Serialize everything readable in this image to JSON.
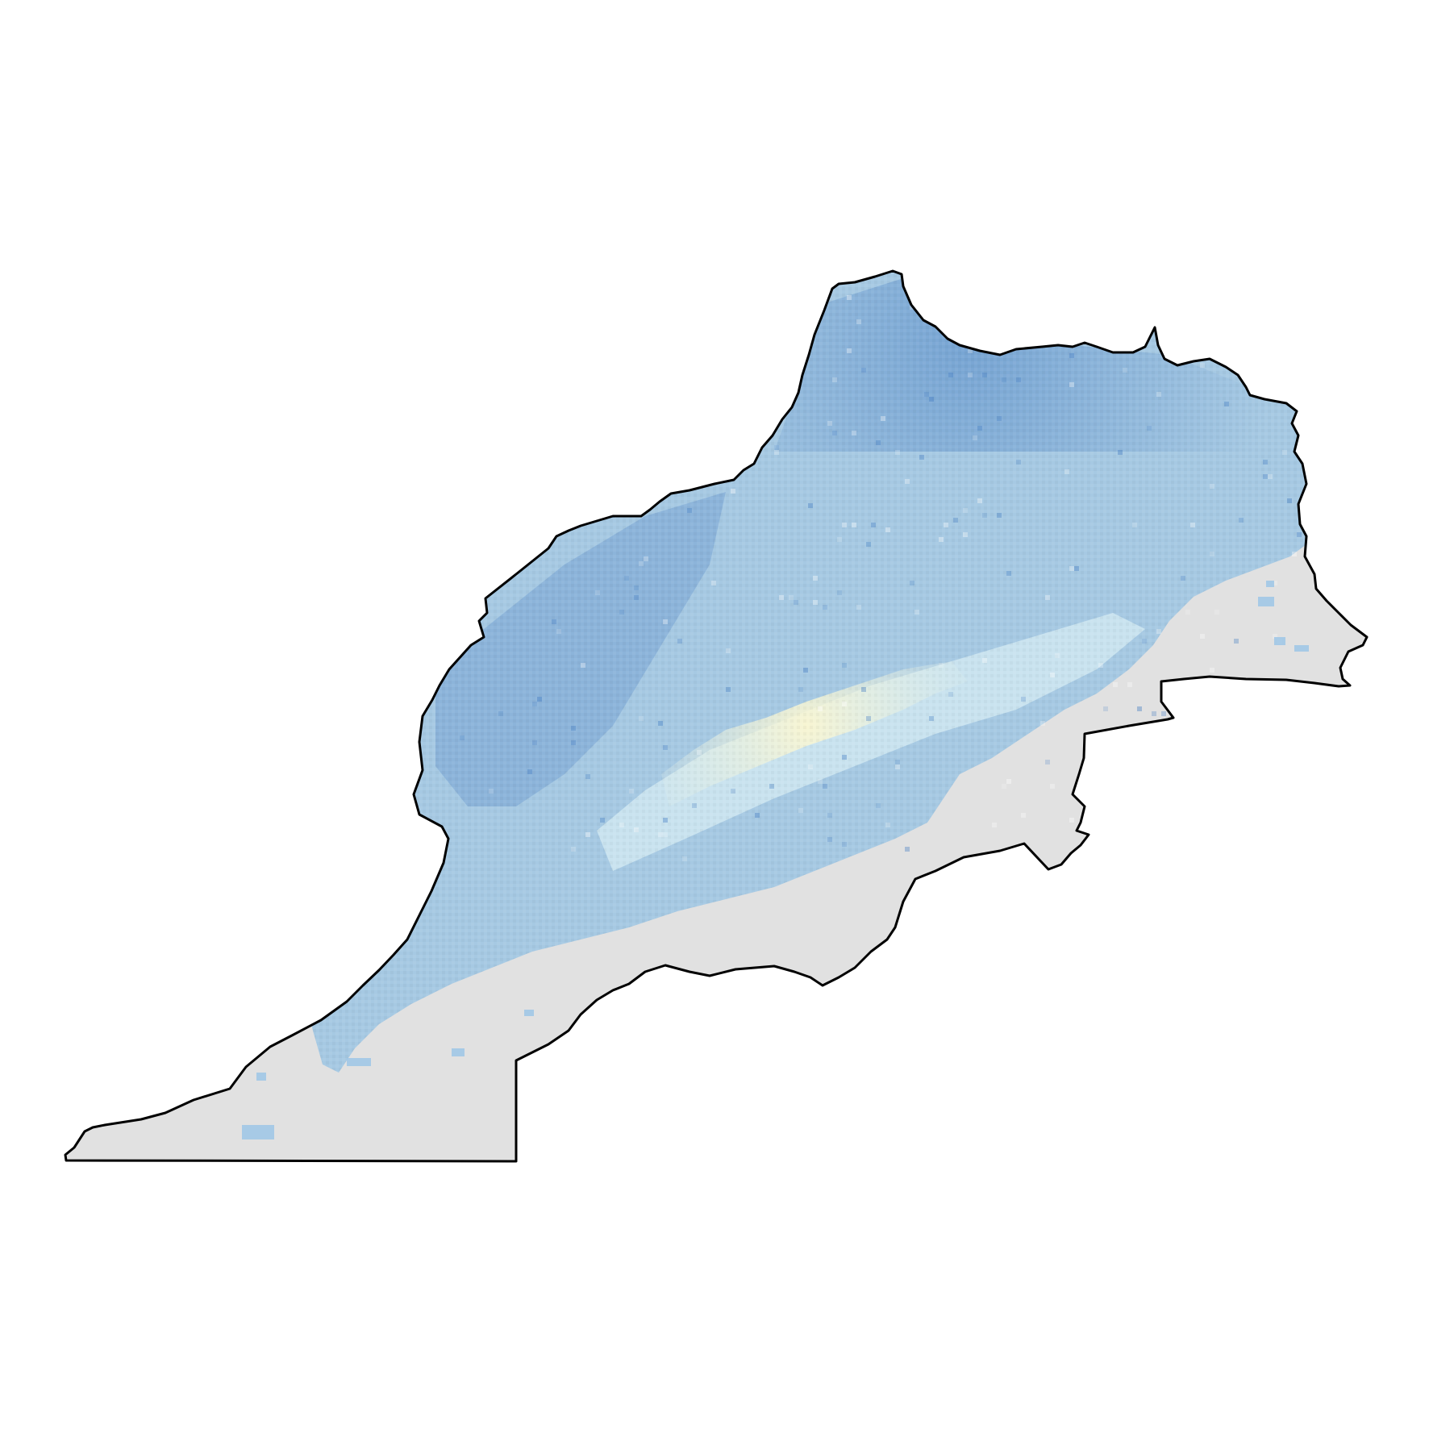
{
  "map": {
    "title": "",
    "legend": null,
    "colors": {
      "background": "#ffffff",
      "no_data": "#e1e1e1",
      "border": "#000000",
      "scale_low": "#fdf7cf",
      "scale_mid": "#d9eef4",
      "scale_high": "#3e78c0"
    },
    "layers": [
      "no-data-land",
      "raster-values",
      "country-border"
    ]
  }
}
